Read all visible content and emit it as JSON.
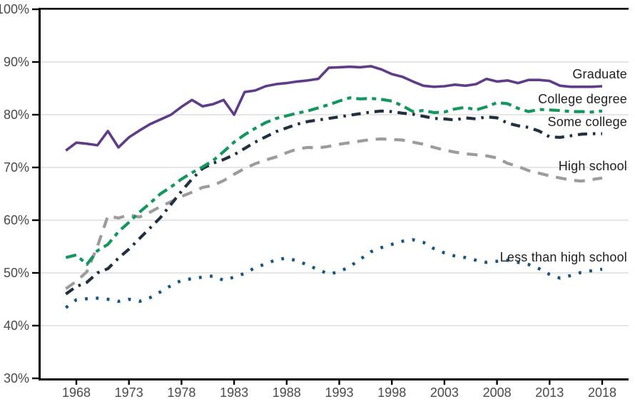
{
  "chart_data": {
    "type": "line",
    "title": "",
    "x": [
      1967,
      1968,
      1969,
      1970,
      1971,
      1972,
      1973,
      1974,
      1975,
      1976,
      1977,
      1978,
      1979,
      1980,
      1981,
      1982,
      1983,
      1984,
      1985,
      1986,
      1987,
      1988,
      1989,
      1990,
      1991,
      1992,
      1993,
      1994,
      1995,
      1996,
      1997,
      1998,
      1999,
      2000,
      2001,
      2002,
      2003,
      2004,
      2005,
      2006,
      2007,
      2008,
      2009,
      2010,
      2011,
      2012,
      2013,
      2014,
      2015,
      2016,
      2017,
      2018
    ],
    "x_axis": {
      "tick_values": [
        1968,
        1973,
        1978,
        1983,
        1988,
        1993,
        1998,
        2003,
        2008,
        2013,
        2018
      ],
      "tick_labels": [
        "1968",
        "1973",
        "1978",
        "1983",
        "1988",
        "1993",
        "1998",
        "2003",
        "2008",
        "2013",
        "2018"
      ]
    },
    "y_axis": {
      "min": 30,
      "max": 100,
      "tick_values": [
        100,
        90,
        80,
        70,
        60,
        50,
        40,
        30
      ],
      "tick_labels": [
        "100%",
        "90%",
        "80%",
        "70%",
        "60%",
        "50%",
        "40%",
        "30%"
      ],
      "gridline_values": [
        90,
        80,
        70,
        60,
        50,
        40
      ]
    },
    "grid": true,
    "legend_position": "inline-right-of-lines",
    "axis_color": "#000000",
    "gridline_color": "#d8d8d8",
    "axis_text_color": "#4a4a4a",
    "label_text_color": "#1f1f1f",
    "series": [
      {
        "name": "High school",
        "color": "#9c9c9c",
        "dash": "15 11",
        "width": 4.2,
        "values": [
          47.0,
          48.4,
          50.2,
          55.0,
          60.8,
          60.4,
          61.0,
          60.6,
          61.5,
          62.6,
          63.5,
          64.5,
          65.3,
          66.2,
          66.6,
          67.5,
          68.7,
          69.8,
          70.7,
          71.4,
          72.0,
          72.8,
          73.5,
          73.8,
          73.7,
          74.0,
          74.4,
          74.7,
          75.0,
          75.3,
          75.4,
          75.3,
          75.2,
          74.8,
          74.4,
          73.8,
          73.3,
          72.9,
          72.6,
          72.4,
          72.2,
          71.8,
          70.8,
          70.2,
          69.4,
          68.9,
          68.4,
          68.0,
          67.6,
          67.4,
          67.7,
          68.0
        ]
      },
      {
        "name": "Less than high school",
        "color": "#175580",
        "dash": "3.8 11.5",
        "width": 4.4,
        "values": [
          43.4,
          44.9,
          45.1,
          45.2,
          45.0,
          44.6,
          45.0,
          44.6,
          45.3,
          46.4,
          47.6,
          48.6,
          48.9,
          49.2,
          49.4,
          48.6,
          49.2,
          49.9,
          51.0,
          51.7,
          52.5,
          52.8,
          52.3,
          51.5,
          50.6,
          49.8,
          50.2,
          51.2,
          52.6,
          54.0,
          54.8,
          55.4,
          56.0,
          56.3,
          55.8,
          54.6,
          53.8,
          53.2,
          52.9,
          52.4,
          52.0,
          52.2,
          52.4,
          52.0,
          51.6,
          50.8,
          49.7,
          49.0,
          49.5,
          50.1,
          50.4,
          50.7
        ]
      },
      {
        "name": "Some college",
        "color": "#20303f",
        "dash": "13 8 3.5 8",
        "width": 4.2,
        "values": [
          46.0,
          47.4,
          48.2,
          50.0,
          50.8,
          52.8,
          54.5,
          56.5,
          58.5,
          60.5,
          63.0,
          65.5,
          67.8,
          69.8,
          70.8,
          71.5,
          72.4,
          73.6,
          74.8,
          75.8,
          76.8,
          77.5,
          78.2,
          78.7,
          79.0,
          79.3,
          79.6,
          79.9,
          80.2,
          80.5,
          80.7,
          80.6,
          80.3,
          80.1,
          79.7,
          79.3,
          79.2,
          79.0,
          79.4,
          79.2,
          79.6,
          79.4,
          78.4,
          77.9,
          77.6,
          76.9,
          75.8,
          75.7,
          76.0,
          76.3,
          76.4,
          76.4
        ]
      },
      {
        "name": "College degree",
        "color": "#14965f",
        "dash": "15 7 6 7",
        "width": 4.2,
        "values": [
          52.9,
          53.4,
          51.6,
          54.2,
          55.4,
          57.8,
          59.6,
          61.5,
          63.2,
          65.0,
          66.3,
          67.8,
          69.0,
          70.1,
          71.3,
          73.0,
          74.8,
          76.2,
          77.4,
          78.5,
          79.3,
          79.8,
          80.3,
          80.7,
          81.3,
          81.9,
          82.6,
          83.2,
          83.0,
          83.1,
          82.9,
          82.6,
          81.7,
          80.6,
          80.8,
          80.4,
          80.5,
          81.1,
          81.4,
          80.9,
          81.5,
          82.3,
          82.1,
          81.2,
          80.6,
          81.0,
          80.9,
          80.8,
          80.6,
          80.6,
          80.5,
          80.7
        ]
      },
      {
        "name": "Graduate",
        "color": "#5f3c87",
        "dash": null,
        "width": 3.6,
        "values": [
          73.2,
          74.7,
          74.5,
          74.2,
          76.9,
          73.8,
          75.7,
          77.0,
          78.2,
          79.1,
          80.0,
          81.5,
          82.8,
          81.6,
          82.0,
          82.8,
          80.0,
          84.3,
          84.6,
          85.4,
          85.8,
          86.0,
          86.3,
          86.5,
          86.8,
          88.9,
          89.0,
          89.1,
          89.0,
          89.2,
          88.6,
          87.7,
          87.2,
          86.3,
          85.5,
          85.3,
          85.4,
          85.7,
          85.5,
          85.8,
          86.8,
          86.3,
          86.5,
          86.0,
          86.6,
          86.6,
          86.4,
          85.5,
          85.3,
          85.3,
          85.3,
          85.4
        ]
      }
    ]
  }
}
